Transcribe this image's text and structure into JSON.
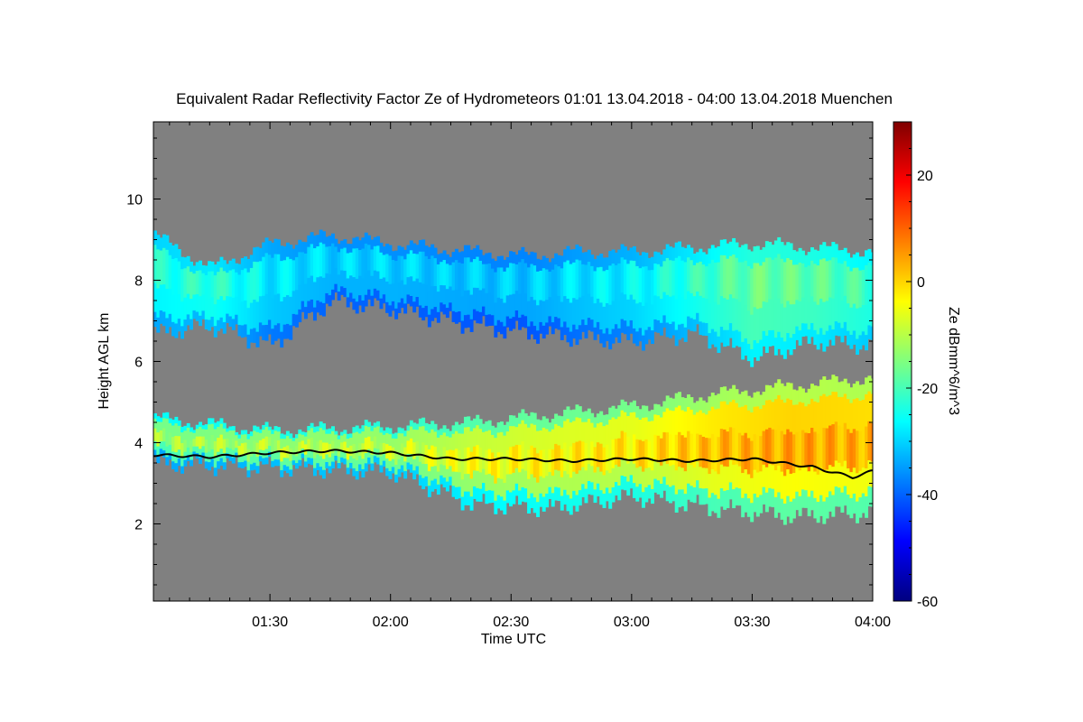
{
  "chart_data": {
    "type": "heatmap",
    "title": "Equivalent Radar Reflectivity Factor Ze of Hydrometeors   01:01 13.04.2018 - 04:00 13.04.2018 Muenchen",
    "xlabel": "Time UTC",
    "ylabel": "Height AGL km",
    "colorbar_label": "Ze dBmm^6/m^3",
    "x_range_minutes": [
      61,
      240
    ],
    "y_range_km": [
      0.1,
      11.9
    ],
    "color_range_dbz": [
      -60,
      30
    ],
    "x_ticks": [
      {
        "minutes": 90,
        "label": "01:30"
      },
      {
        "minutes": 120,
        "label": "02:00"
      },
      {
        "minutes": 150,
        "label": "02:30"
      },
      {
        "minutes": 180,
        "label": "03:00"
      },
      {
        "minutes": 210,
        "label": "03:30"
      },
      {
        "minutes": 240,
        "label": "04:00"
      }
    ],
    "y_ticks": [
      {
        "value": 2,
        "label": "2"
      },
      {
        "value": 4,
        "label": "4"
      },
      {
        "value": 6,
        "label": "6"
      },
      {
        "value": 8,
        "label": "8"
      },
      {
        "value": 10,
        "label": "10"
      }
    ],
    "colorbar_ticks": [
      {
        "value": -60,
        "label": "-60"
      },
      {
        "value": -40,
        "label": "-40"
      },
      {
        "value": -20,
        "label": "-20"
      },
      {
        "value": 0,
        "label": "0"
      },
      {
        "value": 20,
        "label": "20"
      }
    ],
    "background_color": "#808080",
    "colormap": [
      "#00007f",
      "#0000ff",
      "#007fff",
      "#00ffff",
      "#7fff7f",
      "#ffff00",
      "#ff7f00",
      "#ff0000",
      "#7f0000"
    ],
    "upper_layer": {
      "description_points": [
        {
          "minutes": 61,
          "top_km": 9.1,
          "base_km": 6.7,
          "ze_dbz": -24
        },
        {
          "minutes": 75,
          "top_km": 8.3,
          "base_km": 6.9,
          "ze_dbz": -22
        },
        {
          "minutes": 90,
          "top_km": 8.9,
          "base_km": 6.4,
          "ze_dbz": -28
        },
        {
          "minutes": 105,
          "top_km": 9.1,
          "base_km": 7.5,
          "ze_dbz": -30
        },
        {
          "minutes": 120,
          "top_km": 8.9,
          "base_km": 7.3,
          "ze_dbz": -30
        },
        {
          "minutes": 140,
          "top_km": 8.7,
          "base_km": 6.9,
          "ze_dbz": -31
        },
        {
          "minutes": 155,
          "top_km": 8.6,
          "base_km": 6.7,
          "ze_dbz": -31
        },
        {
          "minutes": 165,
          "top_km": 8.7,
          "base_km": 6.6,
          "ze_dbz": -29
        },
        {
          "minutes": 180,
          "top_km": 8.7,
          "base_km": 6.5,
          "ze_dbz": -27
        },
        {
          "minutes": 195,
          "top_km": 8.8,
          "base_km": 6.7,
          "ze_dbz": -22
        },
        {
          "minutes": 210,
          "top_km": 8.9,
          "base_km": 6.1,
          "ze_dbz": -17
        },
        {
          "minutes": 225,
          "top_km": 8.8,
          "base_km": 6.5,
          "ze_dbz": -18
        },
        {
          "minutes": 240,
          "top_km": 8.7,
          "base_km": 6.4,
          "ze_dbz": -21
        }
      ]
    },
    "lower_layer": {
      "description_points": [
        {
          "minutes": 61,
          "top_km": 4.6,
          "base_km": 3.5,
          "ze_dbz": -12
        },
        {
          "minutes": 90,
          "top_km": 4.3,
          "base_km": 3.4,
          "ze_dbz": -10
        },
        {
          "minutes": 120,
          "top_km": 4.4,
          "base_km": 3.3,
          "ze_dbz": -9
        },
        {
          "minutes": 140,
          "top_km": 4.5,
          "base_km": 2.5,
          "ze_dbz": -5
        },
        {
          "minutes": 160,
          "top_km": 4.7,
          "base_km": 2.4,
          "ze_dbz": -3
        },
        {
          "minutes": 180,
          "top_km": 4.9,
          "base_km": 2.7,
          "ze_dbz": -2
        },
        {
          "minutes": 200,
          "top_km": 5.2,
          "base_km": 2.4,
          "ze_dbz": 2
        },
        {
          "minutes": 220,
          "top_km": 5.4,
          "base_km": 2.2,
          "ze_dbz": 4
        },
        {
          "minutes": 240,
          "top_km": 5.6,
          "base_km": 2.3,
          "ze_dbz": 3
        }
      ]
    },
    "melting_layer_line_km": [
      {
        "minutes": 61,
        "km": 3.7
      },
      {
        "minutes": 75,
        "km": 3.65
      },
      {
        "minutes": 90,
        "km": 3.75
      },
      {
        "minutes": 105,
        "km": 3.8
      },
      {
        "minutes": 120,
        "km": 3.75
      },
      {
        "minutes": 135,
        "km": 3.6
      },
      {
        "minutes": 150,
        "km": 3.6
      },
      {
        "minutes": 165,
        "km": 3.55
      },
      {
        "minutes": 180,
        "km": 3.6
      },
      {
        "minutes": 195,
        "km": 3.55
      },
      {
        "minutes": 210,
        "km": 3.6
      },
      {
        "minutes": 225,
        "km": 3.4
      },
      {
        "minutes": 235,
        "km": 3.15
      },
      {
        "minutes": 240,
        "km": 3.3
      }
    ]
  }
}
